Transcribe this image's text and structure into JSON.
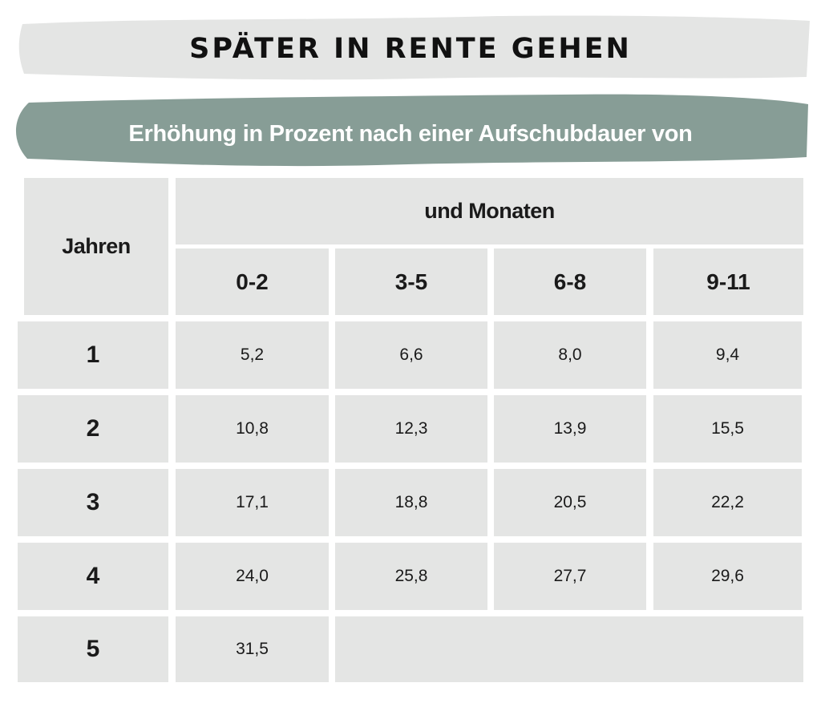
{
  "title": "SPÄTER IN RENTE GEHEN",
  "subtitle": "Erhöhung in Prozent nach einer Aufschubdauer von",
  "table": {
    "years_header": "Jahren",
    "months_header": "und Monaten",
    "month_columns": [
      "0-2",
      "3-5",
      "6-8",
      "9-11"
    ],
    "rows": [
      {
        "year": "1",
        "values": [
          "5,2",
          "6,6",
          "8,0",
          "9,4"
        ]
      },
      {
        "year": "2",
        "values": [
          "10,8",
          "12,3",
          "13,9",
          "15,5"
        ]
      },
      {
        "year": "3",
        "values": [
          "17,1",
          "18,8",
          "20,5",
          "22,2"
        ]
      },
      {
        "year": "4",
        "values": [
          "24,0",
          "25,8",
          "27,7",
          "29,6"
        ]
      },
      {
        "year": "5",
        "values": [
          "31,5"
        ]
      }
    ]
  },
  "colors": {
    "banner_light": "#e4e5e4",
    "banner_accent": "#879d96",
    "cell_background": "#e4e5e4",
    "text": "#1a1a1a"
  }
}
